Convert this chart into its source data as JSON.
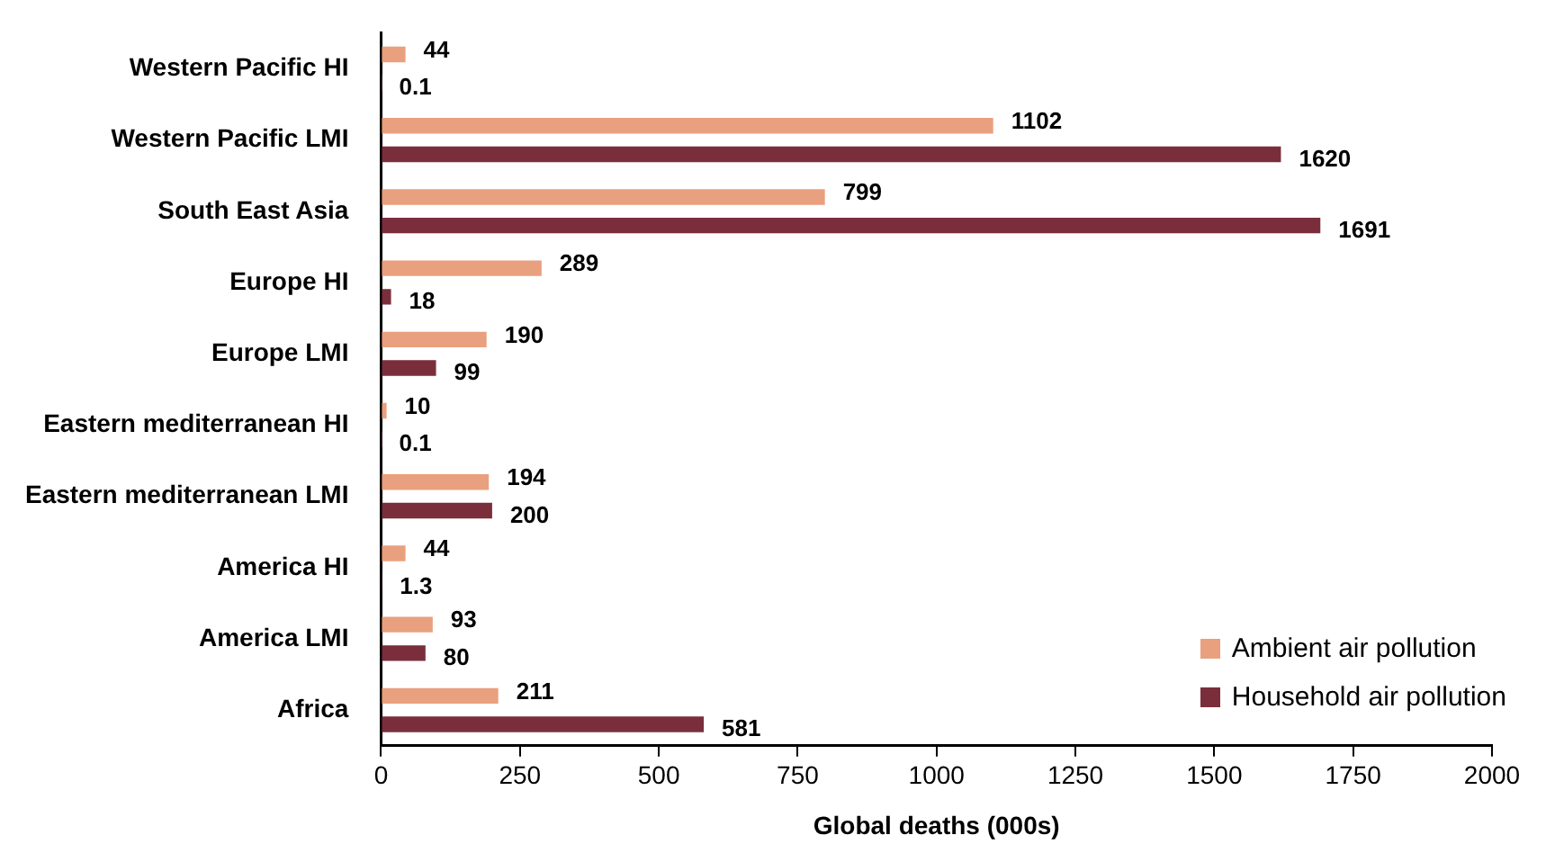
{
  "chart_data": {
    "type": "bar",
    "orientation": "horizontal",
    "xlabel": "Global deaths (000s)",
    "categories": [
      "Western Pacific HI",
      "Western Pacific LMI",
      "South East Asia",
      "Europe HI",
      "Europe LMI",
      "Eastern mediterranean HI",
      "Eastern mediterranean LMI",
      "America HI",
      "America LMI",
      "Africa"
    ],
    "series": [
      {
        "name": "Ambient air pollution",
        "color": "#e9a07e",
        "values": [
          44,
          1102,
          799,
          289,
          190,
          10,
          194,
          44,
          93,
          211
        ]
      },
      {
        "name": "Household air pollution",
        "color": "#7a2e3b",
        "values": [
          0.1,
          1620,
          1691,
          18,
          99,
          0.1,
          200,
          1.3,
          80,
          581
        ]
      }
    ],
    "xlim": [
      0,
      2000
    ],
    "xticks": [
      0,
      250,
      500,
      750,
      1000,
      1250,
      1500,
      1750,
      2000
    ],
    "grid": false,
    "legend": "bottom right",
    "data_labels": true
  }
}
